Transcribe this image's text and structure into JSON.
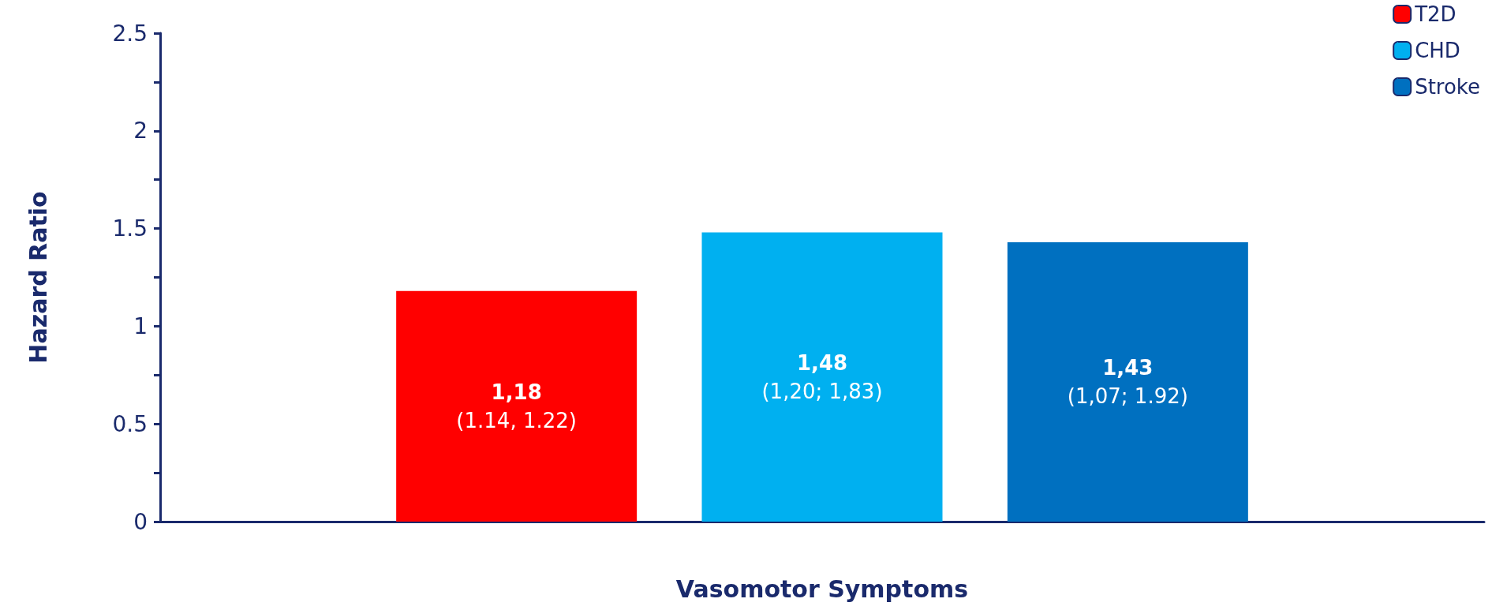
{
  "chart_data": {
    "type": "bar",
    "xlabel": "Vasomotor Symptoms",
    "ylabel": "Hazard Ratio",
    "categories": [
      null
    ],
    "series": [
      {
        "name": "T2D",
        "color": "#ff0000",
        "values": [
          1.18
        ],
        "value_labels": [
          "1,18\n(1.14, 1.22)"
        ]
      },
      {
        "name": "CHD",
        "color": "#00b0f0",
        "values": [
          1.48
        ],
        "value_labels": [
          "1,48\n(1,20; 1,83)"
        ]
      },
      {
        "name": "Stroke",
        "color": "#0070c0",
        "values": [
          1.43
        ],
        "value_labels": [
          "1,43\n(1,07; 1.92)"
        ]
      }
    ],
    "ylim": [
      0,
      2.5
    ],
    "yticks": [
      0,
      {
        "value": 0.25,
        "label": null
      },
      0.5,
      {
        "value": 0.75,
        "label": null
      },
      1,
      {
        "value": 1.25,
        "label": null
      },
      1.5,
      {
        "value": 1.75,
        "label": null
      },
      2,
      {
        "value": 2.25,
        "label": null
      },
      2.5
    ],
    "grid": false,
    "legend": "top right"
  }
}
